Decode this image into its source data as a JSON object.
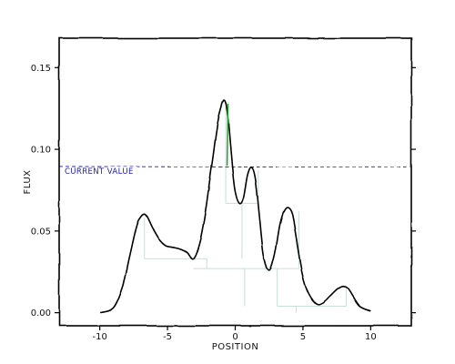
{
  "chart_data": {
    "type": "line",
    "title": "",
    "xlabel": "POSITION",
    "ylabel": "FLUX",
    "xlim": [
      -13,
      13
    ],
    "ylim": [
      -0.008,
      0.168
    ],
    "x_ticks": [
      -10,
      -5,
      0,
      5,
      10
    ],
    "x_tick_labels": [
      "-10",
      "-5",
      "0",
      "5",
      "10"
    ],
    "y_ticks": [
      0.0,
      0.05,
      0.1,
      0.15
    ],
    "y_tick_labels": [
      "0.00",
      "0.05",
      "0.10",
      "0.15"
    ],
    "grid": false,
    "series": [
      {
        "name": "",
        "color": "#000000",
        "x": [
          -10,
          -9,
          -8.3,
          -7.8,
          -7.3,
          -7,
          -6.6,
          -6.1,
          -5.6,
          -5.1,
          -4.6,
          -4.1,
          -3.6,
          -3.1,
          -2.6,
          -2.2,
          -1.9,
          -1.6,
          -1.3,
          -1.0,
          -0.8,
          -0.6,
          -0.4,
          -0.2,
          0.0,
          0.3,
          0.6,
          0.9,
          1.2,
          1.5,
          1.8,
          2.1,
          2.5,
          2.9,
          3.3,
          3.6,
          3.9,
          4.2,
          4.5,
          4.8,
          5.0,
          5.3,
          5.7,
          6.1,
          6.5,
          7.0,
          7.5,
          7.9,
          8.3,
          8.7,
          9.2,
          10
        ],
        "y": [
          0.0,
          0.003,
          0.016,
          0.034,
          0.052,
          0.058,
          0.06,
          0.052,
          0.045,
          0.041,
          0.04,
          0.039,
          0.037,
          0.033,
          0.044,
          0.062,
          0.08,
          0.098,
          0.116,
          0.127,
          0.13,
          0.124,
          0.105,
          0.087,
          0.074,
          0.067,
          0.07,
          0.084,
          0.089,
          0.081,
          0.058,
          0.035,
          0.026,
          0.035,
          0.054,
          0.062,
          0.064,
          0.06,
          0.046,
          0.03,
          0.022,
          0.014,
          0.008,
          0.005,
          0.006,
          0.01,
          0.014,
          0.016,
          0.015,
          0.01,
          0.004,
          0.001
        ]
      }
    ],
    "highlight": {
      "color": "#2aa02a",
      "x": -0.6,
      "y_from": 0.09,
      "y_to": 0.128
    },
    "reference_line": {
      "label": "CURRENT VALUE",
      "y": 0.0895,
      "color": "#1b1bb3",
      "style": "dashed"
    },
    "dendrogram": {
      "color": "#c9ddd9",
      "segments": [
        [
          -6.7,
          0.058,
          -6.7,
          0.033
        ],
        [
          -6.7,
          0.033,
          -2.1,
          0.033
        ],
        [
          -2.1,
          0.033,
          -2.1,
          0.027
        ],
        [
          -3.1,
          0.027,
          4.7,
          0.027
        ],
        [
          4.7,
          0.027,
          4.7,
          0.062
        ],
        [
          -0.7,
          0.126,
          -0.7,
          0.067
        ],
        [
          -0.7,
          0.067,
          1.7,
          0.067
        ],
        [
          1.7,
          0.067,
          1.7,
          0.087
        ],
        [
          0.5,
          0.067,
          0.5,
          0.033
        ],
        [
          3.1,
          0.027,
          3.1,
          0.004
        ],
        [
          3.1,
          0.004,
          8.2,
          0.004
        ],
        [
          8.2,
          0.004,
          8.2,
          0.015
        ],
        [
          0.7,
          0.027,
          0.7,
          0.004
        ],
        [
          4.5,
          0.004,
          4.5,
          0.0
        ]
      ]
    }
  }
}
